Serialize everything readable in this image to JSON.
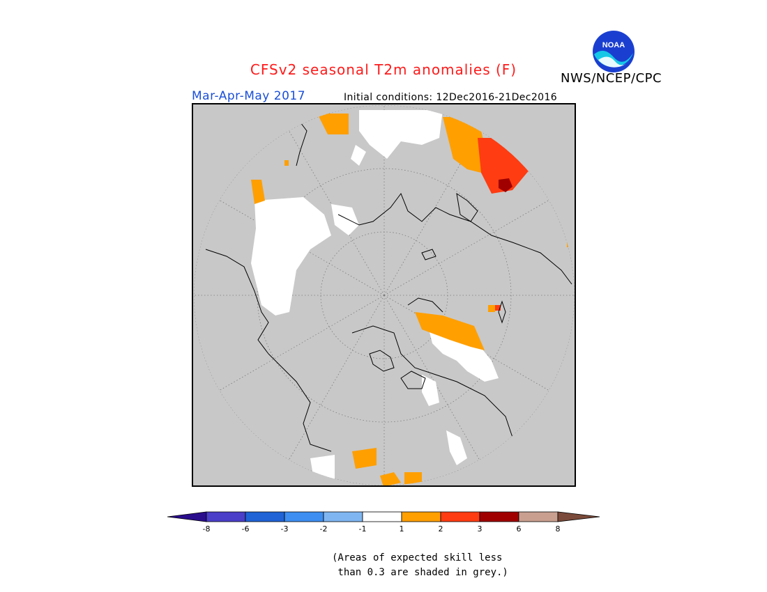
{
  "header": {
    "title": "CFSv2 seasonal T2m anomalies (F)",
    "organization": "NWS/NCEP/CPC",
    "season": "Mar-Apr-May 2017",
    "initial_conditions": "Initial conditions: 12Dec2016-21Dec2016"
  },
  "logo": {
    "text": "NOAA",
    "icon": "noaa-logo-icon"
  },
  "legend": {
    "tick_labels": [
      "-8",
      "-6",
      "-3",
      "-2",
      "-1",
      "1",
      "2",
      "3",
      "6",
      "8"
    ],
    "colors": [
      "#2a0d8c",
      "#4b3ec8",
      "#1f63d6",
      "#3d8ef0",
      "#7fb6f2",
      "#ffffff",
      "#ff9f00",
      "#ff3c12",
      "#a00000",
      "#c9a090",
      "#7b4a3a"
    ]
  },
  "colors": {
    "title": "#ff1a1a",
    "season": "#1a4fd6",
    "skill_grey": "#c8c8c8",
    "positive_1_2": "#ff9f00",
    "positive_2_3": "#ff3c12",
    "positive_3_6": "#a00000"
  },
  "footnote": {
    "line1": "(Areas of expected skill less",
    "line2": " than 0.3 are shaded in grey.)"
  }
}
